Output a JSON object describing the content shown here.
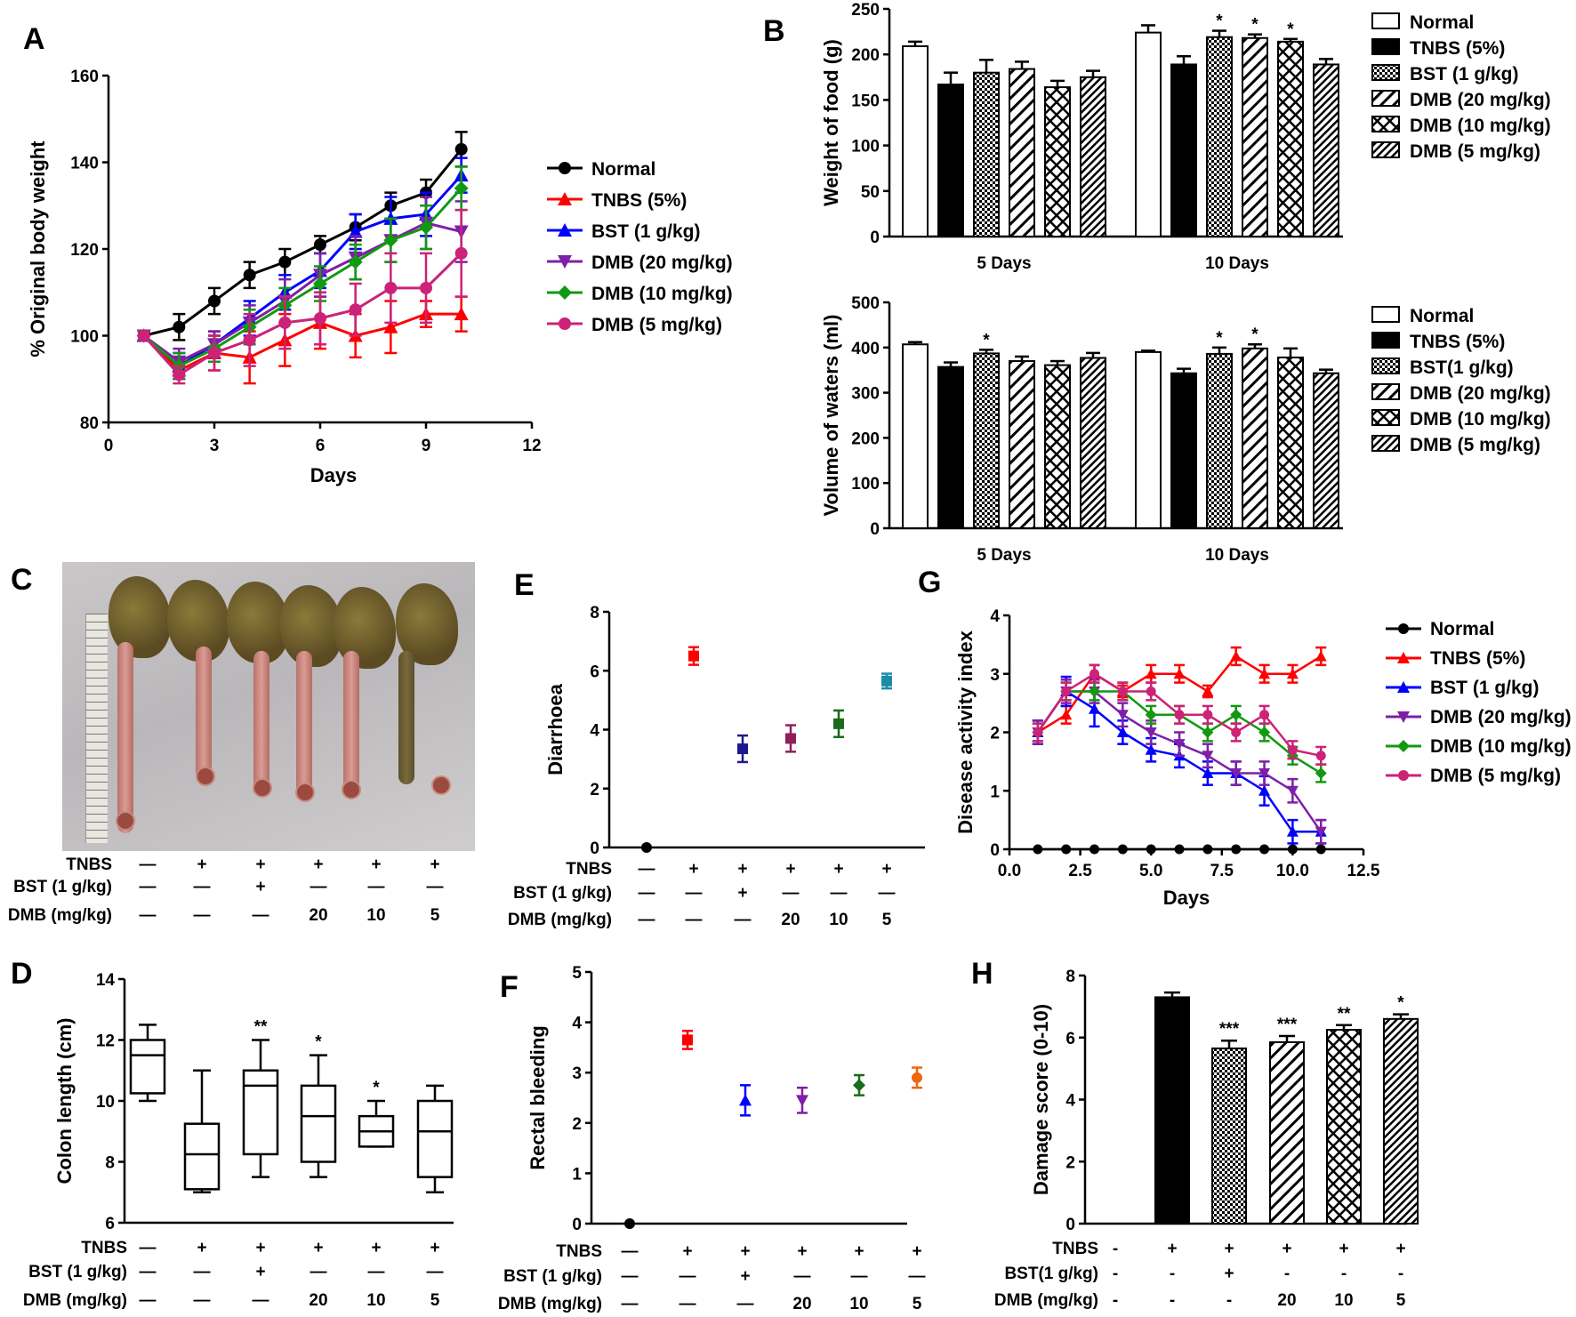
{
  "panels": {
    "A": "A",
    "B": "B",
    "C": "C",
    "D": "D",
    "E": "E",
    "F": "F",
    "G": "G",
    "H": "H"
  },
  "colors": {
    "normal": "#000000",
    "tnbs": "#ff0000",
    "bst": "#0000ff",
    "dmb20": "#7f1fa8",
    "dmb10": "#119911",
    "dmb5": "#cc2277",
    "e_bst": "#1a1a8c",
    "e_dmb20": "#8e1f5c",
    "e_dmb10": "#1a6b1a",
    "e_dmb5": "#1a8ca8",
    "f_dmb5": "#ee6611"
  },
  "conditions": {
    "rows": [
      "TNBS",
      "BST (1 g/kg)",
      "DMB (mg/kg)"
    ],
    "rows_H": [
      "TNBS",
      "BST(1 g/kg)",
      "DMB (mg/kg)"
    ],
    "tnbs": [
      "—",
      "+",
      "+",
      "+",
      "+",
      "+"
    ],
    "bst": [
      "—",
      "—",
      "+",
      "—",
      "—",
      "—"
    ],
    "dmb": [
      "—",
      "—",
      "—",
      "20",
      "10",
      "5"
    ],
    "tnbs_H": [
      "-",
      "+",
      "+",
      "+",
      "+",
      "+"
    ],
    "bst_H": [
      "-",
      "-",
      "+",
      "-",
      "-",
      "-"
    ],
    "dmb_H": [
      "-",
      "-",
      "-",
      "20",
      "10",
      "5"
    ]
  },
  "chart_data": [
    {
      "panel": "A",
      "type": "line",
      "xlabel": "Days",
      "ylabel": "% Original body weight",
      "xlim": [
        0,
        12
      ],
      "ylim": [
        80,
        160
      ],
      "xticks": [
        0,
        3,
        6,
        9,
        12
      ],
      "yticks": [
        80,
        100,
        120,
        140,
        160
      ],
      "x": [
        1,
        2,
        3,
        4,
        5,
        6,
        7,
        8,
        9,
        10
      ],
      "series": [
        {
          "name": "Normal",
          "marker": "circle",
          "color": "#000000",
          "values": [
            100,
            102,
            108,
            114,
            117,
            121,
            125,
            130,
            133,
            143
          ],
          "err": [
            1,
            3,
            3,
            3,
            3,
            2,
            3,
            3,
            3,
            4
          ]
        },
        {
          "name": "TNBS (5%)",
          "marker": "triangle",
          "color": "#ff0000",
          "values": [
            100,
            92,
            96,
            95,
            99,
            103,
            100,
            102,
            105,
            105
          ],
          "err": [
            1,
            2,
            4,
            6,
            6,
            6,
            5,
            6,
            3,
            4
          ]
        },
        {
          "name": "BST (1 g/kg)",
          "marker": "triangle",
          "color": "#0000ff",
          "values": [
            100,
            93,
            98,
            104,
            110,
            115,
            124,
            127,
            128,
            137
          ],
          "err": [
            1,
            3,
            3,
            4,
            4,
            4,
            4,
            5,
            5,
            4
          ]
        },
        {
          "name": "DMB (20 mg/kg)",
          "marker": "triangle-down",
          "color": "#7f1fa8",
          "values": [
            100,
            94,
            98,
            103,
            108,
            114,
            118,
            122,
            126,
            124
          ],
          "err": [
            1,
            3,
            3,
            4,
            5,
            5,
            5,
            5,
            6,
            7
          ]
        },
        {
          "name": "DMB (10 mg/kg)",
          "marker": "diamond",
          "color": "#119911",
          "values": [
            100,
            93,
            97,
            102,
            107,
            112,
            117,
            122,
            125,
            134
          ],
          "err": [
            1,
            3,
            3,
            4,
            4,
            4,
            4,
            5,
            5,
            5
          ]
        },
        {
          "name": "DMB (5 mg/kg)",
          "marker": "circle",
          "color": "#cc2277",
          "values": [
            100,
            91,
            96,
            99,
            103,
            104,
            106,
            111,
            111,
            119
          ],
          "err": [
            1,
            2,
            4,
            6,
            6,
            6,
            6,
            8,
            8,
            10
          ]
        }
      ]
    },
    {
      "panel": "B1",
      "type": "bar",
      "ylabel": "Weight of food (g)",
      "ylim": [
        0,
        250
      ],
      "yticks": [
        0,
        50,
        100,
        150,
        200,
        250
      ],
      "categories": [
        "5 Days",
        "10 Days"
      ],
      "series": [
        {
          "name": "Normal",
          "values": [
            209,
            224
          ],
          "err": [
            5,
            8
          ]
        },
        {
          "name": "TNBS (5%)",
          "values": [
            167,
            189
          ],
          "err": [
            13,
            9
          ]
        },
        {
          "name": "BST (1 g/kg)",
          "values": [
            180,
            219
          ],
          "err": [
            14,
            7
          ]
        },
        {
          "name": "DMB (20 mg/kg)",
          "values": [
            184,
            218
          ],
          "err": [
            8,
            4
          ]
        },
        {
          "name": "DMB (10 mg/kg)",
          "values": [
            164,
            214
          ],
          "err": [
            7,
            3
          ]
        },
        {
          "name": "DMB (5 mg/kg)",
          "values": [
            175,
            189
          ],
          "err": [
            7,
            6
          ]
        }
      ],
      "sig": [
        [
          "",
          "",
          "",
          "",
          "",
          ""
        ],
        [
          "",
          "",
          "*",
          "*",
          "*",
          ""
        ]
      ]
    },
    {
      "panel": "B2",
      "type": "bar",
      "ylabel": "Volume of waters (ml)",
      "ylim": [
        0,
        500
      ],
      "yticks": [
        0,
        100,
        200,
        300,
        400,
        500
      ],
      "categories": [
        "5 Days",
        "10 Days"
      ],
      "series": [
        {
          "name": "Normal",
          "values": [
            407,
            390
          ],
          "err": [
            5,
            3
          ]
        },
        {
          "name": "TNBS (5%)",
          "values": [
            357,
            343
          ],
          "err": [
            10,
            10
          ]
        },
        {
          "name": "BST(1 g/kg)",
          "values": [
            387,
            386
          ],
          "err": [
            8,
            14
          ]
        },
        {
          "name": "DMB (20 mg/kg)",
          "values": [
            370,
            398
          ],
          "err": [
            10,
            9
          ]
        },
        {
          "name": "DMB (10 mg/kg)",
          "values": [
            361,
            378
          ],
          "err": [
            9,
            20
          ]
        },
        {
          "name": "DMB (5 mg/kg)",
          "values": [
            377,
            343
          ],
          "err": [
            11,
            8
          ]
        }
      ],
      "sig": [
        [
          "",
          "",
          "*",
          "",
          "",
          ""
        ],
        [
          "",
          "",
          "*",
          "*",
          "",
          ""
        ]
      ]
    },
    {
      "panel": "D",
      "type": "box",
      "ylabel": "Colon length (cm)",
      "ylim": [
        6,
        14
      ],
      "yticks": [
        6,
        8,
        10,
        12,
        14
      ],
      "boxes": [
        {
          "min": 10,
          "q1": 10.25,
          "median": 11.5,
          "q3": 12,
          "max": 12.5,
          "sig": ""
        },
        {
          "min": 7,
          "q1": 7.1,
          "median": 8.25,
          "q3": 9.25,
          "max": 11,
          "sig": ""
        },
        {
          "min": 7.5,
          "q1": 8.25,
          "median": 10.5,
          "q3": 11,
          "max": 12,
          "sig": "**"
        },
        {
          "min": 7.5,
          "q1": 8,
          "median": 9.5,
          "q3": 10.5,
          "max": 11.5,
          "sig": "*"
        },
        {
          "min": 8.5,
          "q1": 8.5,
          "median": 9,
          "q3": 9.5,
          "max": 10,
          "sig": "*"
        },
        {
          "min": 7,
          "q1": 7.5,
          "median": 9,
          "q3": 10,
          "max": 10.5,
          "sig": ""
        }
      ]
    },
    {
      "panel": "E",
      "type": "scatter",
      "ylabel": "Diarrhoea",
      "ylim": [
        0,
        8
      ],
      "yticks": [
        0,
        2,
        4,
        6,
        8
      ],
      "points": [
        {
          "value": 0,
          "err": 0,
          "marker": "circle",
          "color": "#000000"
        },
        {
          "value": 6.5,
          "err": 0.3,
          "marker": "square",
          "color": "#ff0000"
        },
        {
          "value": 3.35,
          "err": 0.45,
          "marker": "square",
          "color": "#1a1a8c"
        },
        {
          "value": 3.7,
          "err": 0.45,
          "marker": "square",
          "color": "#8e1f5c"
        },
        {
          "value": 4.2,
          "err": 0.45,
          "marker": "square",
          "color": "#1a6b1a"
        },
        {
          "value": 5.65,
          "err": 0.25,
          "marker": "square",
          "color": "#1a8ca8"
        }
      ]
    },
    {
      "panel": "F",
      "type": "scatter",
      "ylabel": "Rectal bleeding",
      "ylim": [
        0,
        5
      ],
      "yticks": [
        0,
        1,
        2,
        3,
        4,
        5
      ],
      "points": [
        {
          "value": 0,
          "err": 0,
          "marker": "circle",
          "color": "#000000"
        },
        {
          "value": 3.65,
          "err": 0.18,
          "marker": "square",
          "color": "#ff0000"
        },
        {
          "value": 2.45,
          "err": 0.3,
          "marker": "triangle",
          "color": "#0000ff"
        },
        {
          "value": 2.45,
          "err": 0.25,
          "marker": "triangle-down",
          "color": "#7f1fa8"
        },
        {
          "value": 2.75,
          "err": 0.2,
          "marker": "diamond",
          "color": "#1a6b1a"
        },
        {
          "value": 2.9,
          "err": 0.2,
          "marker": "circle",
          "color": "#ee6611"
        }
      ]
    },
    {
      "panel": "G",
      "type": "line",
      "xlabel": "Days",
      "ylabel": "Disease activity index",
      "xlim": [
        0,
        12.5
      ],
      "ylim": [
        0,
        4
      ],
      "xticks": [
        0.0,
        2.5,
        5.0,
        7.5,
        10.0,
        12.5
      ],
      "xtick_labels": [
        "0.0",
        "2.5",
        "5.0",
        "7.5",
        "10.0",
        "12.5"
      ],
      "yticks": [
        0,
        1,
        2,
        3,
        4
      ],
      "x": [
        1,
        2,
        3,
        4,
        5,
        6,
        7,
        8,
        9,
        10,
        11
      ],
      "series": [
        {
          "name": "Normal",
          "marker": "circle",
          "color": "#000000",
          "values": [
            0,
            0,
            0,
            0,
            0,
            0,
            0,
            0,
            0,
            0,
            0
          ],
          "err": [
            0,
            0,
            0,
            0,
            0,
            0,
            0,
            0,
            0,
            0,
            0
          ]
        },
        {
          "name": "TNBS (5%)",
          "marker": "triangle",
          "color": "#ff0000",
          "values": [
            2,
            2.3,
            3,
            2.7,
            3,
            3,
            2.7,
            3.3,
            3,
            3,
            3.3
          ],
          "err": [
            0.2,
            0.15,
            0.15,
            0.1,
            0.15,
            0.15,
            0.1,
            0.15,
            0.15,
            0.15,
            0.15
          ]
        },
        {
          "name": "BST (1 g/kg)",
          "marker": "triangle",
          "color": "#0000ff",
          "values": [
            2,
            2.7,
            2.4,
            2,
            1.7,
            1.6,
            1.3,
            1.3,
            1,
            0.3,
            0.3
          ],
          "err": [
            0.2,
            0.25,
            0.3,
            0.2,
            0.2,
            0.2,
            0.2,
            0.2,
            0.25,
            0.2,
            0.2
          ]
        },
        {
          "name": "DMB (20 mg/kg)",
          "marker": "triangle-down",
          "color": "#7f1fa8",
          "values": [
            2,
            2.7,
            2.7,
            2.3,
            2,
            1.8,
            1.6,
            1.3,
            1.3,
            1,
            0.3
          ],
          "err": [
            0.2,
            0.2,
            0.2,
            0.2,
            0.2,
            0.2,
            0.2,
            0.2,
            0.2,
            0.2,
            0.2
          ]
        },
        {
          "name": "DMB (10 mg/kg)",
          "marker": "diamond",
          "color": "#119911",
          "values": [
            2,
            2.7,
            2.7,
            2.7,
            2.3,
            2.3,
            2,
            2.3,
            2,
            1.6,
            1.3
          ],
          "err": [
            0.15,
            0.15,
            0.15,
            0.15,
            0.15,
            0.15,
            0.15,
            0.15,
            0.15,
            0.15,
            0.15
          ]
        },
        {
          "name": "DMB (5 mg/kg)",
          "marker": "circle",
          "color": "#cc2277",
          "values": [
            2,
            2.7,
            3,
            2.7,
            2.7,
            2.3,
            2.3,
            2,
            2.3,
            1.7,
            1.6
          ],
          "err": [
            0.15,
            0.15,
            0.15,
            0.15,
            0.15,
            0.15,
            0.15,
            0.15,
            0.15,
            0.15,
            0.15
          ]
        }
      ]
    },
    {
      "panel": "H",
      "type": "bar",
      "ylabel": "Damage score (0-10)",
      "ylim": [
        0,
        8
      ],
      "yticks": [
        0,
        2,
        4,
        6,
        8
      ],
      "bars": [
        {
          "value": 0,
          "err": 0,
          "pattern": "none",
          "sig": ""
        },
        {
          "value": 7.3,
          "err": 0.15,
          "pattern": "solid",
          "sig": ""
        },
        {
          "value": 5.65,
          "err": 0.25,
          "pattern": "dots",
          "sig": "***"
        },
        {
          "value": 5.85,
          "err": 0.2,
          "pattern": "hatch",
          "sig": "***"
        },
        {
          "value": 6.25,
          "err": 0.15,
          "pattern": "cross",
          "sig": "**"
        },
        {
          "value": 6.6,
          "err": 0.15,
          "pattern": "dense",
          "sig": "*"
        }
      ]
    }
  ]
}
